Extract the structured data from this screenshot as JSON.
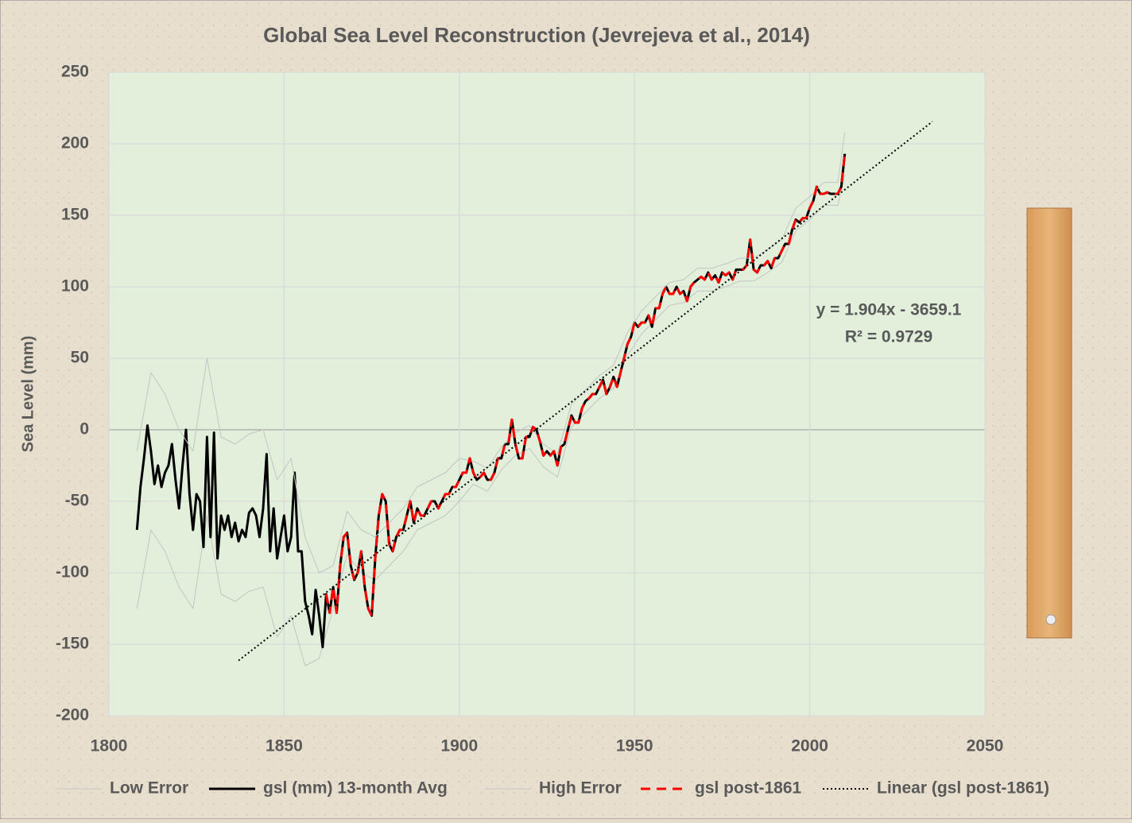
{
  "chart_data": {
    "type": "line",
    "title": "Global Sea Level Reconstruction (Jevrejeva et al., 2014)",
    "y_label": "Sea Level (mm)",
    "xlim": [
      1800,
      2050
    ],
    "xticks": [
      1800,
      1850,
      1900,
      1950,
      2000,
      2050
    ],
    "ylim": [
      -200,
      250
    ],
    "yticks": [
      -200,
      -150,
      -100,
      -50,
      0,
      50,
      100,
      150,
      200,
      250
    ],
    "grid": true,
    "legend": "bottom",
    "annotations": [
      "y = 1.904x - 3659.1",
      "R² = 0.9729"
    ],
    "series": [
      {
        "name": "Low Error",
        "color": "#c4c4c4",
        "line_style": "solid",
        "x": [
          1808,
          1812,
          1816,
          1820,
          1824,
          1828,
          1832,
          1836,
          1840,
          1844,
          1848,
          1852,
          1856,
          1860,
          1864,
          1868,
          1872,
          1876,
          1880,
          1884,
          1888,
          1892,
          1896,
          1900,
          1904,
          1908,
          1912,
          1916,
          1920,
          1924,
          1928,
          1932,
          1936,
          1940,
          1944,
          1948,
          1952,
          1956,
          1960,
          1964,
          1968,
          1972,
          1976,
          1980,
          1984,
          1988,
          1992,
          1996,
          2000,
          2004,
          2008,
          2010
        ],
        "values": [
          -125,
          -70,
          -85,
          -110,
          -125,
          -60,
          -115,
          -120,
          -113,
          -110,
          -145,
          -130,
          -165,
          -160,
          -125,
          -87,
          -100,
          -105,
          -95,
          -85,
          -70,
          -65,
          -60,
          -50,
          -38,
          -43,
          -28,
          -18,
          -13,
          -26,
          -33,
          2,
          12,
          22,
          29,
          52,
          67,
          77,
          87,
          89,
          97,
          97,
          100,
          104,
          104,
          110,
          117,
          139,
          147,
          157,
          157,
          178
        ]
      },
      {
        "name": "gsl (mm) 13-month Avg",
        "color": "#000000",
        "line_style": "solid",
        "x": [
          1808,
          1809,
          1810,
          1811,
          1812,
          1813,
          1814,
          1815,
          1816,
          1817,
          1818,
          1819,
          1820,
          1821,
          1822,
          1823,
          1824,
          1825,
          1826,
          1827,
          1828,
          1829,
          1830,
          1831,
          1832,
          1833,
          1834,
          1835,
          1836,
          1837,
          1838,
          1839,
          1840,
          1841,
          1842,
          1843,
          1844,
          1845,
          1846,
          1847,
          1848,
          1849,
          1850,
          1851,
          1852,
          1853,
          1854,
          1855,
          1856,
          1857,
          1858,
          1859,
          1860,
          1861,
          1862,
          1863,
          1864,
          1865,
          1866,
          1867,
          1868,
          1869,
          1870,
          1871,
          1872,
          1873,
          1874,
          1875,
          1876,
          1877,
          1878,
          1879,
          1880,
          1881,
          1882,
          1883,
          1884,
          1885,
          1886,
          1887,
          1888,
          1889,
          1890,
          1891,
          1892,
          1893,
          1894,
          1895,
          1896,
          1897,
          1898,
          1899,
          1900,
          1901,
          1902,
          1903,
          1904,
          1905,
          1906,
          1907,
          1908,
          1909,
          1910,
          1911,
          1912,
          1913,
          1914,
          1915,
          1916,
          1917,
          1918,
          1919,
          1920,
          1921,
          1922,
          1923,
          1924,
          1925,
          1926,
          1927,
          1928,
          1929,
          1930,
          1931,
          1932,
          1933,
          1934,
          1935,
          1936,
          1937,
          1938,
          1939,
          1940,
          1941,
          1942,
          1943,
          1944,
          1945,
          1946,
          1947,
          1948,
          1949,
          1950,
          1951,
          1952,
          1953,
          1954,
          1955,
          1956,
          1957,
          1958,
          1959,
          1960,
          1961,
          1962,
          1963,
          1964,
          1965,
          1966,
          1967,
          1968,
          1969,
          1970,
          1971,
          1972,
          1973,
          1974,
          1975,
          1976,
          1977,
          1978,
          1979,
          1980,
          1981,
          1982,
          1983,
          1984,
          1985,
          1986,
          1987,
          1988,
          1989,
          1990,
          1991,
          1992,
          1993,
          1994,
          1995,
          1996,
          1997,
          1998,
          1999,
          2000,
          2001,
          2002,
          2003,
          2004,
          2005,
          2006,
          2007,
          2008,
          2009,
          2010
        ],
        "values": [
          -70,
          -40,
          -20,
          3,
          -15,
          -38,
          -25,
          -40,
          -30,
          -25,
          -10,
          -35,
          -55,
          -25,
          0,
          -45,
          -70,
          -45,
          -50,
          -82,
          -5,
          -75,
          -2,
          -90,
          -60,
          -70,
          -60,
          -75,
          -65,
          -78,
          -70,
          -75,
          -58,
          -55,
          -60,
          -75,
          -55,
          -17,
          -85,
          -55,
          -90,
          -75,
          -60,
          -85,
          -75,
          -30,
          -85,
          -85,
          -120,
          -130,
          -143,
          -112,
          -130,
          -152,
          -115,
          -128,
          -110,
          -128,
          -95,
          -75,
          -72,
          -95,
          -105,
          -100,
          -85,
          -110,
          -125,
          -130,
          -90,
          -60,
          -45,
          -50,
          -80,
          -85,
          -75,
          -70,
          -70,
          -60,
          -50,
          -65,
          -55,
          -60,
          -60,
          -55,
          -50,
          -50,
          -55,
          -50,
          -45,
          -45,
          -40,
          -40,
          -35,
          -30,
          -30,
          -20,
          -30,
          -35,
          -33,
          -30,
          -35,
          -35,
          -30,
          -20,
          -20,
          -10,
          -10,
          7,
          -10,
          -20,
          -20,
          -5,
          -5,
          2,
          0,
          -8,
          -18,
          -15,
          -18,
          -15,
          -25,
          -12,
          -10,
          0,
          10,
          5,
          5,
          15,
          20,
          22,
          25,
          25,
          30,
          35,
          25,
          30,
          37,
          30,
          40,
          50,
          60,
          65,
          75,
          72,
          75,
          75,
          80,
          72,
          85,
          85,
          95,
          100,
          95,
          95,
          100,
          95,
          97,
          90,
          100,
          103,
          105,
          107,
          105,
          110,
          105,
          108,
          103,
          110,
          108,
          110,
          105,
          112,
          112,
          112,
          115,
          133,
          112,
          110,
          115,
          115,
          118,
          113,
          120,
          120,
          125,
          130,
          130,
          140,
          147,
          145,
          148,
          148,
          155,
          160,
          170,
          165,
          165,
          166,
          165,
          165,
          165,
          170,
          193
        ]
      },
      {
        "name": "High Error",
        "color": "#c4c4c4",
        "line_style": "solid",
        "x": [
          1808,
          1812,
          1816,
          1820,
          1824,
          1828,
          1832,
          1836,
          1840,
          1844,
          1848,
          1852,
          1856,
          1860,
          1864,
          1868,
          1872,
          1876,
          1880,
          1884,
          1888,
          1892,
          1896,
          1900,
          1904,
          1908,
          1912,
          1916,
          1920,
          1924,
          1928,
          1932,
          1936,
          1940,
          1944,
          1948,
          1952,
          1956,
          1960,
          1964,
          1968,
          1972,
          1976,
          1980,
          1984,
          1988,
          1992,
          1996,
          2000,
          2004,
          2008,
          2010
        ],
        "values": [
          -15,
          40,
          25,
          0,
          -15,
          50,
          -5,
          -10,
          -3,
          0,
          -35,
          -20,
          -75,
          -100,
          -95,
          -57,
          -70,
          -75,
          -65,
          -55,
          -40,
          -35,
          -30,
          -20,
          -22,
          -27,
          -12,
          -2,
          3,
          -10,
          -17,
          18,
          28,
          38,
          45,
          68,
          83,
          93,
          103,
          105,
          113,
          113,
          116,
          120,
          120,
          126,
          133,
          155,
          163,
          173,
          173,
          208
        ]
      },
      {
        "name": "gsl post-1861",
        "color": "#ff0000",
        "line_style": "dashed",
        "x": [
          1862,
          1863,
          1864,
          1865,
          1866,
          1867,
          1868,
          1869,
          1870,
          1871,
          1872,
          1873,
          1874,
          1875,
          1876,
          1877,
          1878,
          1879,
          1880,
          1881,
          1882,
          1883,
          1884,
          1885,
          1886,
          1887,
          1888,
          1889,
          1890,
          1891,
          1892,
          1893,
          1894,
          1895,
          1896,
          1897,
          1898,
          1899,
          1900,
          1901,
          1902,
          1903,
          1904,
          1905,
          1906,
          1907,
          1908,
          1909,
          1910,
          1911,
          1912,
          1913,
          1914,
          1915,
          1916,
          1917,
          1918,
          1919,
          1920,
          1921,
          1922,
          1923,
          1924,
          1925,
          1926,
          1927,
          1928,
          1929,
          1930,
          1931,
          1932,
          1933,
          1934,
          1935,
          1936,
          1937,
          1938,
          1939,
          1940,
          1941,
          1942,
          1943,
          1944,
          1945,
          1946,
          1947,
          1948,
          1949,
          1950,
          1951,
          1952,
          1953,
          1954,
          1955,
          1956,
          1957,
          1958,
          1959,
          1960,
          1961,
          1962,
          1963,
          1964,
          1965,
          1966,
          1967,
          1968,
          1969,
          1970,
          1971,
          1972,
          1973,
          1974,
          1975,
          1976,
          1977,
          1978,
          1979,
          1980,
          1981,
          1982,
          1983,
          1984,
          1985,
          1986,
          1987,
          1988,
          1989,
          1990,
          1991,
          1992,
          1993,
          1994,
          1995,
          1996,
          1997,
          1998,
          1999,
          2000,
          2001,
          2002,
          2003,
          2004,
          2005,
          2006,
          2007,
          2008,
          2009,
          2010
        ],
        "values": [
          -115,
          -128,
          -110,
          -128,
          -95,
          -75,
          -72,
          -95,
          -105,
          -100,
          -85,
          -110,
          -125,
          -130,
          -90,
          -60,
          -45,
          -50,
          -80,
          -85,
          -75,
          -70,
          -70,
          -60,
          -50,
          -65,
          -55,
          -60,
          -60,
          -55,
          -50,
          -50,
          -55,
          -50,
          -45,
          -45,
          -40,
          -40,
          -35,
          -30,
          -30,
          -20,
          -30,
          -35,
          -33,
          -30,
          -35,
          -35,
          -30,
          -20,
          -20,
          -10,
          -10,
          7,
          -10,
          -20,
          -20,
          -5,
          -5,
          2,
          0,
          -8,
          -18,
          -15,
          -18,
          -15,
          -25,
          -12,
          -10,
          0,
          10,
          5,
          5,
          15,
          20,
          22,
          25,
          25,
          30,
          35,
          25,
          30,
          37,
          30,
          40,
          50,
          60,
          65,
          75,
          72,
          75,
          75,
          80,
          72,
          85,
          85,
          95,
          100,
          95,
          95,
          100,
          95,
          97,
          90,
          100,
          103,
          105,
          107,
          105,
          110,
          105,
          108,
          103,
          110,
          108,
          110,
          105,
          112,
          112,
          112,
          115,
          133,
          112,
          110,
          115,
          115,
          118,
          113,
          120,
          120,
          125,
          130,
          130,
          140,
          147,
          145,
          148,
          148,
          155,
          160,
          170,
          165,
          165,
          166,
          165,
          165,
          165,
          170,
          193
        ]
      },
      {
        "name": "Linear (gsl post-1861)",
        "color": "#000000",
        "line_style": "dotted",
        "x": [
          1837,
          2035
        ],
        "values": [
          -161.4,
          215.5
        ]
      }
    ]
  }
}
